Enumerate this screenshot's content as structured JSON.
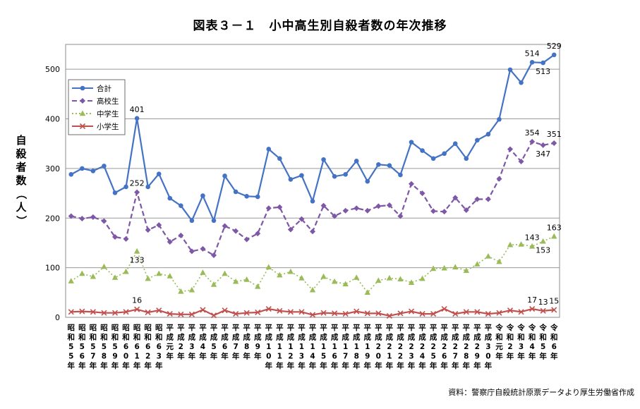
{
  "title": "図表３－１　小中高生別自殺者数の年次推移",
  "source": "資料：警察庁自殺統計原票データより厚生労働省作成",
  "chart_data": {
    "type": "line",
    "ylabel": "自殺者数（人）",
    "ylim": [
      0,
      550
    ],
    "yticks": [
      0,
      100,
      200,
      300,
      400,
      500
    ],
    "grid": true,
    "legend_position": "top-left",
    "categories": [
      "昭和55年",
      "昭和56年",
      "昭和57年",
      "昭和58年",
      "昭和59年",
      "昭和60年",
      "昭和61年",
      "昭和62年",
      "昭和63年",
      "平成元年",
      "平成2年",
      "平成3年",
      "平成4年",
      "平成5年",
      "平成6年",
      "平成7年",
      "平成8年",
      "平成9年",
      "平成10年",
      "平成11年",
      "平成12年",
      "平成13年",
      "平成14年",
      "平成15年",
      "平成16年",
      "平成17年",
      "平成18年",
      "平成19年",
      "平成20年",
      "平成21年",
      "平成22年",
      "平成23年",
      "平成24年",
      "平成25年",
      "平成26年",
      "平成27年",
      "平成28年",
      "平成29年",
      "平成30年",
      "令和元年",
      "令和2年",
      "令和3年",
      "令和4年",
      "令和5年",
      "令和6年"
    ],
    "category_labels": [
      "昭和55年",
      "昭和56年",
      "昭和57年",
      "昭和58年",
      "昭和59年",
      "昭和60年",
      "昭和61年",
      "昭和62年",
      "昭和63年",
      "平成元年",
      "平成2年",
      "平成3年",
      "平成4年",
      "平成5年",
      "平成6年",
      "平成7年",
      "平成8年",
      "平成9年",
      "平成10年",
      "平成11年",
      "平成12年",
      "平成13年",
      "平成14年",
      "平成15年",
      "平成16年",
      "平成17年",
      "平成18年",
      "平成19年",
      "平成20年",
      "平成21年",
      "平成22年",
      "平成23年",
      "平成24年",
      "平成25年",
      "平成26年",
      "平成27年",
      "平成28年",
      "平成29年",
      "平成30年",
      "令和元年",
      "令和2年",
      "令和3年",
      "令和4年",
      "令和5年",
      "令和6年"
    ],
    "series": [
      {
        "name": "合計",
        "color": "#4472C4",
        "style": "solid",
        "marker": "circle",
        "values": [
          288,
          300,
          295,
          305,
          251,
          263,
          401,
          263,
          289,
          240,
          225,
          195,
          245,
          195,
          285,
          253,
          244,
          243,
          339,
          320,
          278,
          286,
          234,
          318,
          284,
          288,
          315,
          274,
          308,
          306,
          287,
          353,
          336,
          320,
          330,
          350,
          320,
          357,
          369,
          399,
          499,
          473,
          514,
          513,
          529
        ],
        "labels": [
          {
            "i": 6,
            "text": "401",
            "pos": "above"
          },
          {
            "i": 42,
            "text": "514",
            "pos": "above"
          },
          {
            "i": 43,
            "text": "513",
            "pos": "below"
          },
          {
            "i": 44,
            "text": "529",
            "pos": "above"
          }
        ]
      },
      {
        "name": "高校生",
        "color": "#7E57A6",
        "style": "dashed",
        "marker": "diamond",
        "values": [
          204,
          199,
          202,
          194,
          162,
          158,
          252,
          176,
          186,
          152,
          165,
          133,
          138,
          125,
          184,
          174,
          157,
          169,
          220,
          222,
          177,
          198,
          173,
          225,
          204,
          215,
          220,
          215,
          224,
          226,
          204,
          269,
          250,
          214,
          213,
          241,
          216,
          238,
          238,
          279,
          339,
          314,
          354,
          347,
          351
        ],
        "labels": [
          {
            "i": 6,
            "text": "252",
            "pos": "above"
          },
          {
            "i": 42,
            "text": "354",
            "pos": "above"
          },
          {
            "i": 43,
            "text": "347",
            "pos": "below"
          },
          {
            "i": 44,
            "text": "351",
            "pos": "above"
          }
        ]
      },
      {
        "name": "中学生",
        "color": "#9BBB59",
        "style": "dotted",
        "marker": "triangle",
        "values": [
          73,
          88,
          82,
          102,
          80,
          92,
          133,
          78,
          88,
          83,
          52,
          55,
          90,
          66,
          88,
          72,
          76,
          62,
          101,
          85,
          92,
          79,
          55,
          82,
          72,
          67,
          80,
          50,
          74,
          79,
          77,
          70,
          78,
          98,
          99,
          101,
          94,
          107,
          123,
          112,
          146,
          147,
          143,
          153,
          163
        ],
        "labels": [
          {
            "i": 6,
            "text": "133",
            "pos": "below"
          },
          {
            "i": 42,
            "text": "143",
            "pos": "above"
          },
          {
            "i": 43,
            "text": "153",
            "pos": "below"
          },
          {
            "i": 44,
            "text": "163",
            "pos": "above"
          }
        ]
      },
      {
        "name": "小学生",
        "color": "#C0504D",
        "style": "solid",
        "marker": "x",
        "values": [
          11,
          12,
          11,
          9,
          9,
          11,
          16,
          10,
          14,
          7,
          6,
          6,
          15,
          4,
          14,
          7,
          9,
          10,
          17,
          13,
          11,
          11,
          5,
          9,
          8,
          7,
          12,
          8,
          8,
          3,
          8,
          12,
          7,
          7,
          17,
          7,
          11,
          11,
          7,
          9,
          14,
          11,
          17,
          13,
          15
        ],
        "labels": [
          {
            "i": 6,
            "text": "16",
            "pos": "above"
          },
          {
            "i": 42,
            "text": "17",
            "pos": "above"
          },
          {
            "i": 43,
            "text": "13",
            "pos": "above"
          },
          {
            "i": 44,
            "text": "15",
            "pos": "above"
          }
        ]
      }
    ]
  }
}
